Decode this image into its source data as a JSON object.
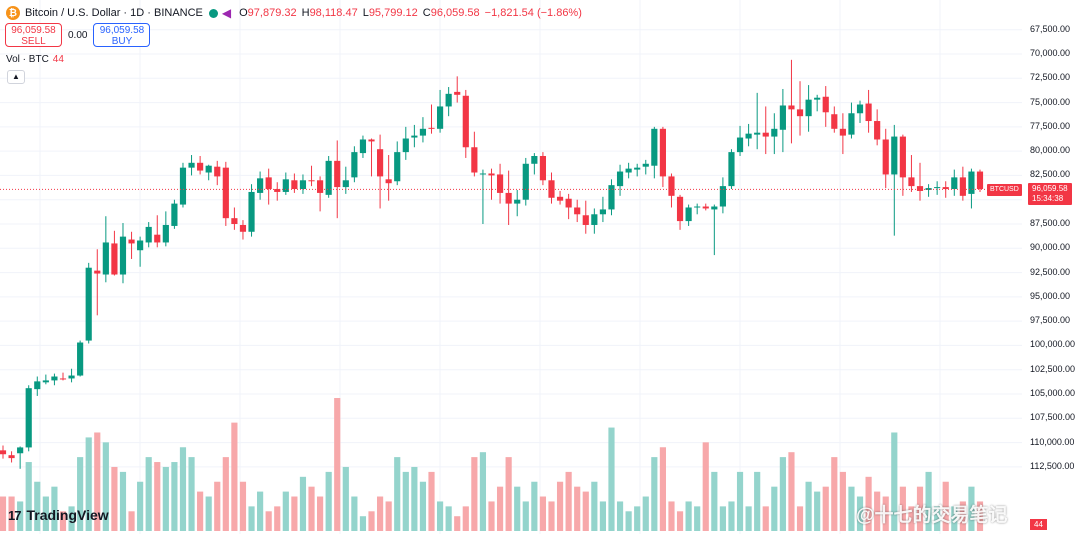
{
  "header": {
    "coin_glyph": "₿",
    "symbol_title": "Bitcoin / U.S. Dollar · 1D · BINANCE",
    "open_label": "O",
    "open_value": "97,879.32",
    "high_label": "H",
    "high_value": "98,118.47",
    "low_label": "L",
    "low_value": "95,799.12",
    "close_label": "C",
    "close_value": "96,059.58",
    "change_value": "−1,821.54 (−1.86%)"
  },
  "trade": {
    "sell_price": "96,059.58",
    "sell_label": "SELL",
    "spread": "0.00",
    "buy_price": "96,059.58",
    "buy_label": "BUY"
  },
  "volume_legend": {
    "label": "Vol · BTC",
    "value": "44"
  },
  "axis": {
    "ticks": [
      "112,500.00",
      "110,000.00",
      "107,500.00",
      "105,000.00",
      "102,500.00",
      "100,000.00",
      "97,500.00",
      "95,000.00",
      "92,500.00",
      "90,000.00",
      "87,500.00",
      "85,000.00",
      "82,500.00",
      "80,000.00",
      "77,500.00",
      "75,000.00",
      "72,500.00",
      "70,000.00",
      "67,500.00"
    ]
  },
  "price_badge": {
    "symbol": "BTCUSD",
    "price": "96,059.58",
    "countdown": "15:34:38"
  },
  "volume_badge": "44",
  "logo": {
    "mark": "17",
    "text": "TradingView"
  },
  "watermark": "@十七的交易笔记",
  "colors": {
    "up": "#089981",
    "down": "#f23645",
    "volume_up": "#94d4cc",
    "volume_down": "#f7a8aa",
    "grid": "#f0f3fa"
  },
  "icons": [
    "bitcoin-coin-icon",
    "market-status-dot-icon",
    "indicator-arrow-icon",
    "chevron-up-icon"
  ],
  "chart_data": {
    "type": "candlestick",
    "title": "Bitcoin / U.S. Dollar · 1D · BINANCE",
    "y_range": [
      66250,
      113500
    ],
    "y_ticks": [
      67500,
      70000,
      72500,
      75000,
      77500,
      80000,
      82500,
      85000,
      87500,
      90000,
      92500,
      95000,
      97500,
      100000,
      102500,
      105000,
      107500,
      110000,
      112500
    ],
    "last_price": 96059.58,
    "grid": true,
    "candles": [
      {
        "o": 69200,
        "h": 69700,
        "l": 68350,
        "c": 68800
      },
      {
        "o": 68700,
        "h": 69100,
        "l": 67950,
        "c": 68400
      },
      {
        "o": 68900,
        "h": 69600,
        "l": 67300,
        "c": 69500
      },
      {
        "o": 69500,
        "h": 75900,
        "l": 69100,
        "c": 75600
      },
      {
        "o": 75500,
        "h": 76800,
        "l": 74800,
        "c": 76300
      },
      {
        "o": 76200,
        "h": 77000,
        "l": 76000,
        "c": 76400
      },
      {
        "o": 76400,
        "h": 77100,
        "l": 75900,
        "c": 76800
      },
      {
        "o": 76600,
        "h": 77200,
        "l": 76400,
        "c": 76500
      },
      {
        "o": 76600,
        "h": 77600,
        "l": 76200,
        "c": 76900
      },
      {
        "o": 76900,
        "h": 80500,
        "l": 76800,
        "c": 80300
      },
      {
        "o": 80500,
        "h": 88500,
        "l": 80200,
        "c": 88000
      },
      {
        "o": 87700,
        "h": 89900,
        "l": 83100,
        "c": 87400
      },
      {
        "o": 87300,
        "h": 93300,
        "l": 86500,
        "c": 90600
      },
      {
        "o": 90500,
        "h": 91800,
        "l": 87200,
        "c": 87300
      },
      {
        "o": 87300,
        "h": 92600,
        "l": 86400,
        "c": 91200
      },
      {
        "o": 90900,
        "h": 91700,
        "l": 88900,
        "c": 90500
      },
      {
        "o": 89800,
        "h": 91200,
        "l": 88100,
        "c": 90800
      },
      {
        "o": 90600,
        "h": 92700,
        "l": 90100,
        "c": 92200
      },
      {
        "o": 91400,
        "h": 93400,
        "l": 90100,
        "c": 90600
      },
      {
        "o": 90600,
        "h": 93800,
        "l": 90200,
        "c": 92400
      },
      {
        "o": 92300,
        "h": 95000,
        "l": 92000,
        "c": 94600
      },
      {
        "o": 94500,
        "h": 98800,
        "l": 94200,
        "c": 98300
      },
      {
        "o": 98300,
        "h": 99600,
        "l": 97500,
        "c": 98800
      },
      {
        "o": 98800,
        "h": 99500,
        "l": 97600,
        "c": 98000
      },
      {
        "o": 97800,
        "h": 98600,
        "l": 97000,
        "c": 98500
      },
      {
        "o": 98400,
        "h": 99000,
        "l": 96500,
        "c": 97400
      },
      {
        "o": 98300,
        "h": 98900,
        "l": 92300,
        "c": 93100
      },
      {
        "o": 93100,
        "h": 94200,
        "l": 91900,
        "c": 92500
      },
      {
        "o": 92400,
        "h": 92900,
        "l": 90900,
        "c": 91700
      },
      {
        "o": 91700,
        "h": 96600,
        "l": 91200,
        "c": 95800
      },
      {
        "o": 95700,
        "h": 97900,
        "l": 95000,
        "c": 97200
      },
      {
        "o": 97300,
        "h": 98200,
        "l": 94500,
        "c": 96100
      },
      {
        "o": 96100,
        "h": 96800,
        "l": 94900,
        "c": 95800
      },
      {
        "o": 95800,
        "h": 97800,
        "l": 95500,
        "c": 97100
      },
      {
        "o": 97000,
        "h": 97700,
        "l": 95700,
        "c": 96100
      },
      {
        "o": 96100,
        "h": 97600,
        "l": 95600,
        "c": 97000
      },
      {
        "o": 97000,
        "h": 98500,
        "l": 96400,
        "c": 96900
      },
      {
        "o": 97000,
        "h": 97400,
        "l": 93800,
        "c": 95700
      },
      {
        "o": 95500,
        "h": 99500,
        "l": 95200,
        "c": 99000
      },
      {
        "o": 99000,
        "h": 101100,
        "l": 93100,
        "c": 96300
      },
      {
        "o": 96300,
        "h": 98400,
        "l": 95600,
        "c": 97000
      },
      {
        "o": 97300,
        "h": 100500,
        "l": 96800,
        "c": 99900
      },
      {
        "o": 99800,
        "h": 101600,
        "l": 99300,
        "c": 101200
      },
      {
        "o": 101200,
        "h": 101300,
        "l": 97400,
        "c": 101000
      },
      {
        "o": 100200,
        "h": 101700,
        "l": 94100,
        "c": 97400
      },
      {
        "o": 97100,
        "h": 99600,
        "l": 94900,
        "c": 96700
      },
      {
        "o": 96900,
        "h": 101000,
        "l": 96500,
        "c": 99900
      },
      {
        "o": 99900,
        "h": 102500,
        "l": 99100,
        "c": 101300
      },
      {
        "o": 101400,
        "h": 102700,
        "l": 100400,
        "c": 101600
      },
      {
        "o": 101600,
        "h": 103500,
        "l": 100900,
        "c": 102300
      },
      {
        "o": 102400,
        "h": 104800,
        "l": 101800,
        "c": 102300
      },
      {
        "o": 102300,
        "h": 106300,
        "l": 101900,
        "c": 104600
      },
      {
        "o": 104600,
        "h": 106600,
        "l": 103600,
        "c": 105900
      },
      {
        "o": 106100,
        "h": 107700,
        "l": 105000,
        "c": 105800
      },
      {
        "o": 105700,
        "h": 106300,
        "l": 99300,
        "c": 100400
      },
      {
        "o": 100400,
        "h": 102000,
        "l": 97400,
        "c": 97800
      },
      {
        "o": 97700,
        "h": 98100,
        "l": 92500,
        "c": 97700
      },
      {
        "o": 97700,
        "h": 98200,
        "l": 95000,
        "c": 97500
      },
      {
        "o": 97600,
        "h": 98700,
        "l": 94600,
        "c": 95700
      },
      {
        "o": 95700,
        "h": 98000,
        "l": 92400,
        "c": 94600
      },
      {
        "o": 94600,
        "h": 96000,
        "l": 93300,
        "c": 95000
      },
      {
        "o": 95000,
        "h": 99300,
        "l": 94400,
        "c": 98700
      },
      {
        "o": 98700,
        "h": 99800,
        "l": 97600,
        "c": 99500
      },
      {
        "o": 99500,
        "h": 99900,
        "l": 96500,
        "c": 97000
      },
      {
        "o": 97000,
        "h": 97800,
        "l": 94600,
        "c": 95200
      },
      {
        "o": 95300,
        "h": 95900,
        "l": 94500,
        "c": 94900
      },
      {
        "o": 95100,
        "h": 95600,
        "l": 93000,
        "c": 94200
      },
      {
        "o": 94200,
        "h": 95000,
        "l": 92700,
        "c": 93500
      },
      {
        "o": 93400,
        "h": 94900,
        "l": 91500,
        "c": 92400
      },
      {
        "o": 92400,
        "h": 94100,
        "l": 91500,
        "c": 93500
      },
      {
        "o": 93500,
        "h": 95300,
        "l": 92700,
        "c": 94000
      },
      {
        "o": 94000,
        "h": 97100,
        "l": 93400,
        "c": 96500
      },
      {
        "o": 96400,
        "h": 98600,
        "l": 95400,
        "c": 97900
      },
      {
        "o": 97800,
        "h": 98800,
        "l": 97200,
        "c": 98200
      },
      {
        "o": 98100,
        "h": 98700,
        "l": 97400,
        "c": 98300
      },
      {
        "o": 98400,
        "h": 99100,
        "l": 97600,
        "c": 98700
      },
      {
        "o": 98500,
        "h": 102500,
        "l": 97200,
        "c": 102300
      },
      {
        "o": 102300,
        "h": 102500,
        "l": 96300,
        "c": 97400
      },
      {
        "o": 97400,
        "h": 97700,
        "l": 94200,
        "c": 95400
      },
      {
        "o": 95300,
        "h": 95500,
        "l": 91900,
        "c": 92800
      },
      {
        "o": 92800,
        "h": 94500,
        "l": 92300,
        "c": 94200
      },
      {
        "o": 94200,
        "h": 94600,
        "l": 93500,
        "c": 94300
      },
      {
        "o": 94300,
        "h": 94600,
        "l": 93900,
        "c": 94100
      },
      {
        "o": 94000,
        "h": 94500,
        "l": 89300,
        "c": 94300
      },
      {
        "o": 94300,
        "h": 97300,
        "l": 93600,
        "c": 96400
      },
      {
        "o": 96400,
        "h": 100200,
        "l": 96100,
        "c": 99900
      },
      {
        "o": 99900,
        "h": 102600,
        "l": 99500,
        "c": 101400
      },
      {
        "o": 101300,
        "h": 102800,
        "l": 100500,
        "c": 101800
      },
      {
        "o": 101700,
        "h": 106000,
        "l": 100200,
        "c": 101900
      },
      {
        "o": 101900,
        "h": 104600,
        "l": 99700,
        "c": 101500
      },
      {
        "o": 101500,
        "h": 103900,
        "l": 99700,
        "c": 102300
      },
      {
        "o": 102200,
        "h": 106400,
        "l": 99900,
        "c": 104700
      },
      {
        "o": 104700,
        "h": 109400,
        "l": 100800,
        "c": 104300
      },
      {
        "o": 104300,
        "h": 107200,
        "l": 101600,
        "c": 103600
      },
      {
        "o": 103600,
        "h": 106800,
        "l": 102000,
        "c": 105300
      },
      {
        "o": 105300,
        "h": 105800,
        "l": 104100,
        "c": 105500
      },
      {
        "o": 105600,
        "h": 106700,
        "l": 102500,
        "c": 104000
      },
      {
        "o": 103800,
        "h": 104600,
        "l": 101900,
        "c": 102300
      },
      {
        "o": 102300,
        "h": 103900,
        "l": 99700,
        "c": 101600
      },
      {
        "o": 101700,
        "h": 105000,
        "l": 101300,
        "c": 103900
      },
      {
        "o": 103900,
        "h": 105200,
        "l": 102900,
        "c": 104800
      },
      {
        "o": 104900,
        "h": 106300,
        "l": 101900,
        "c": 103100
      },
      {
        "o": 103100,
        "h": 104300,
        "l": 100600,
        "c": 101200
      },
      {
        "o": 101200,
        "h": 102300,
        "l": 96200,
        "c": 97600
      },
      {
        "o": 97600,
        "h": 102700,
        "l": 91300,
        "c": 101500
      },
      {
        "o": 101500,
        "h": 101700,
        "l": 95400,
        "c": 97300
      },
      {
        "o": 97300,
        "h": 99600,
        "l": 95800,
        "c": 96400
      },
      {
        "o": 96400,
        "h": 98800,
        "l": 94900,
        "c": 95900
      },
      {
        "o": 96000,
        "h": 96600,
        "l": 95300,
        "c": 96200
      },
      {
        "o": 96200,
        "h": 96900,
        "l": 95500,
        "c": 96300
      },
      {
        "o": 96300,
        "h": 96900,
        "l": 95200,
        "c": 96100
      },
      {
        "o": 96100,
        "h": 98100,
        "l": 95400,
        "c": 97300
      },
      {
        "o": 97300,
        "h": 98400,
        "l": 94900,
        "c": 95400
      },
      {
        "o": 95600,
        "h": 98200,
        "l": 94100,
        "c": 97900
      },
      {
        "o": 97900,
        "h": 98100,
        "l": 95800,
        "c": 96100
      }
    ],
    "volumes": [
      7,
      7,
      6,
      14,
      10,
      7,
      9,
      4,
      5,
      15,
      19,
      20,
      18,
      13,
      12,
      4,
      10,
      15,
      14,
      13,
      14,
      17,
      15,
      8,
      7,
      10,
      15,
      22,
      10,
      5,
      8,
      4,
      5,
      8,
      7,
      11,
      9,
      7,
      12,
      27,
      13,
      7,
      3,
      4,
      7,
      6,
      15,
      12,
      13,
      10,
      12,
      6,
      5,
      3,
      5,
      15,
      16,
      6,
      9,
      15,
      9,
      6,
      10,
      7,
      6,
      10,
      12,
      9,
      8,
      10,
      6,
      21,
      6,
      4,
      5,
      7,
      15,
      17,
      6,
      4,
      6,
      5,
      18,
      12,
      5,
      6,
      12,
      5,
      12,
      5,
      9,
      15,
      16,
      5,
      10,
      8,
      9,
      15,
      12,
      9,
      7,
      11,
      8,
      7,
      20,
      9,
      5,
      9,
      12,
      5,
      10,
      5,
      6,
      9,
      6
    ]
  }
}
